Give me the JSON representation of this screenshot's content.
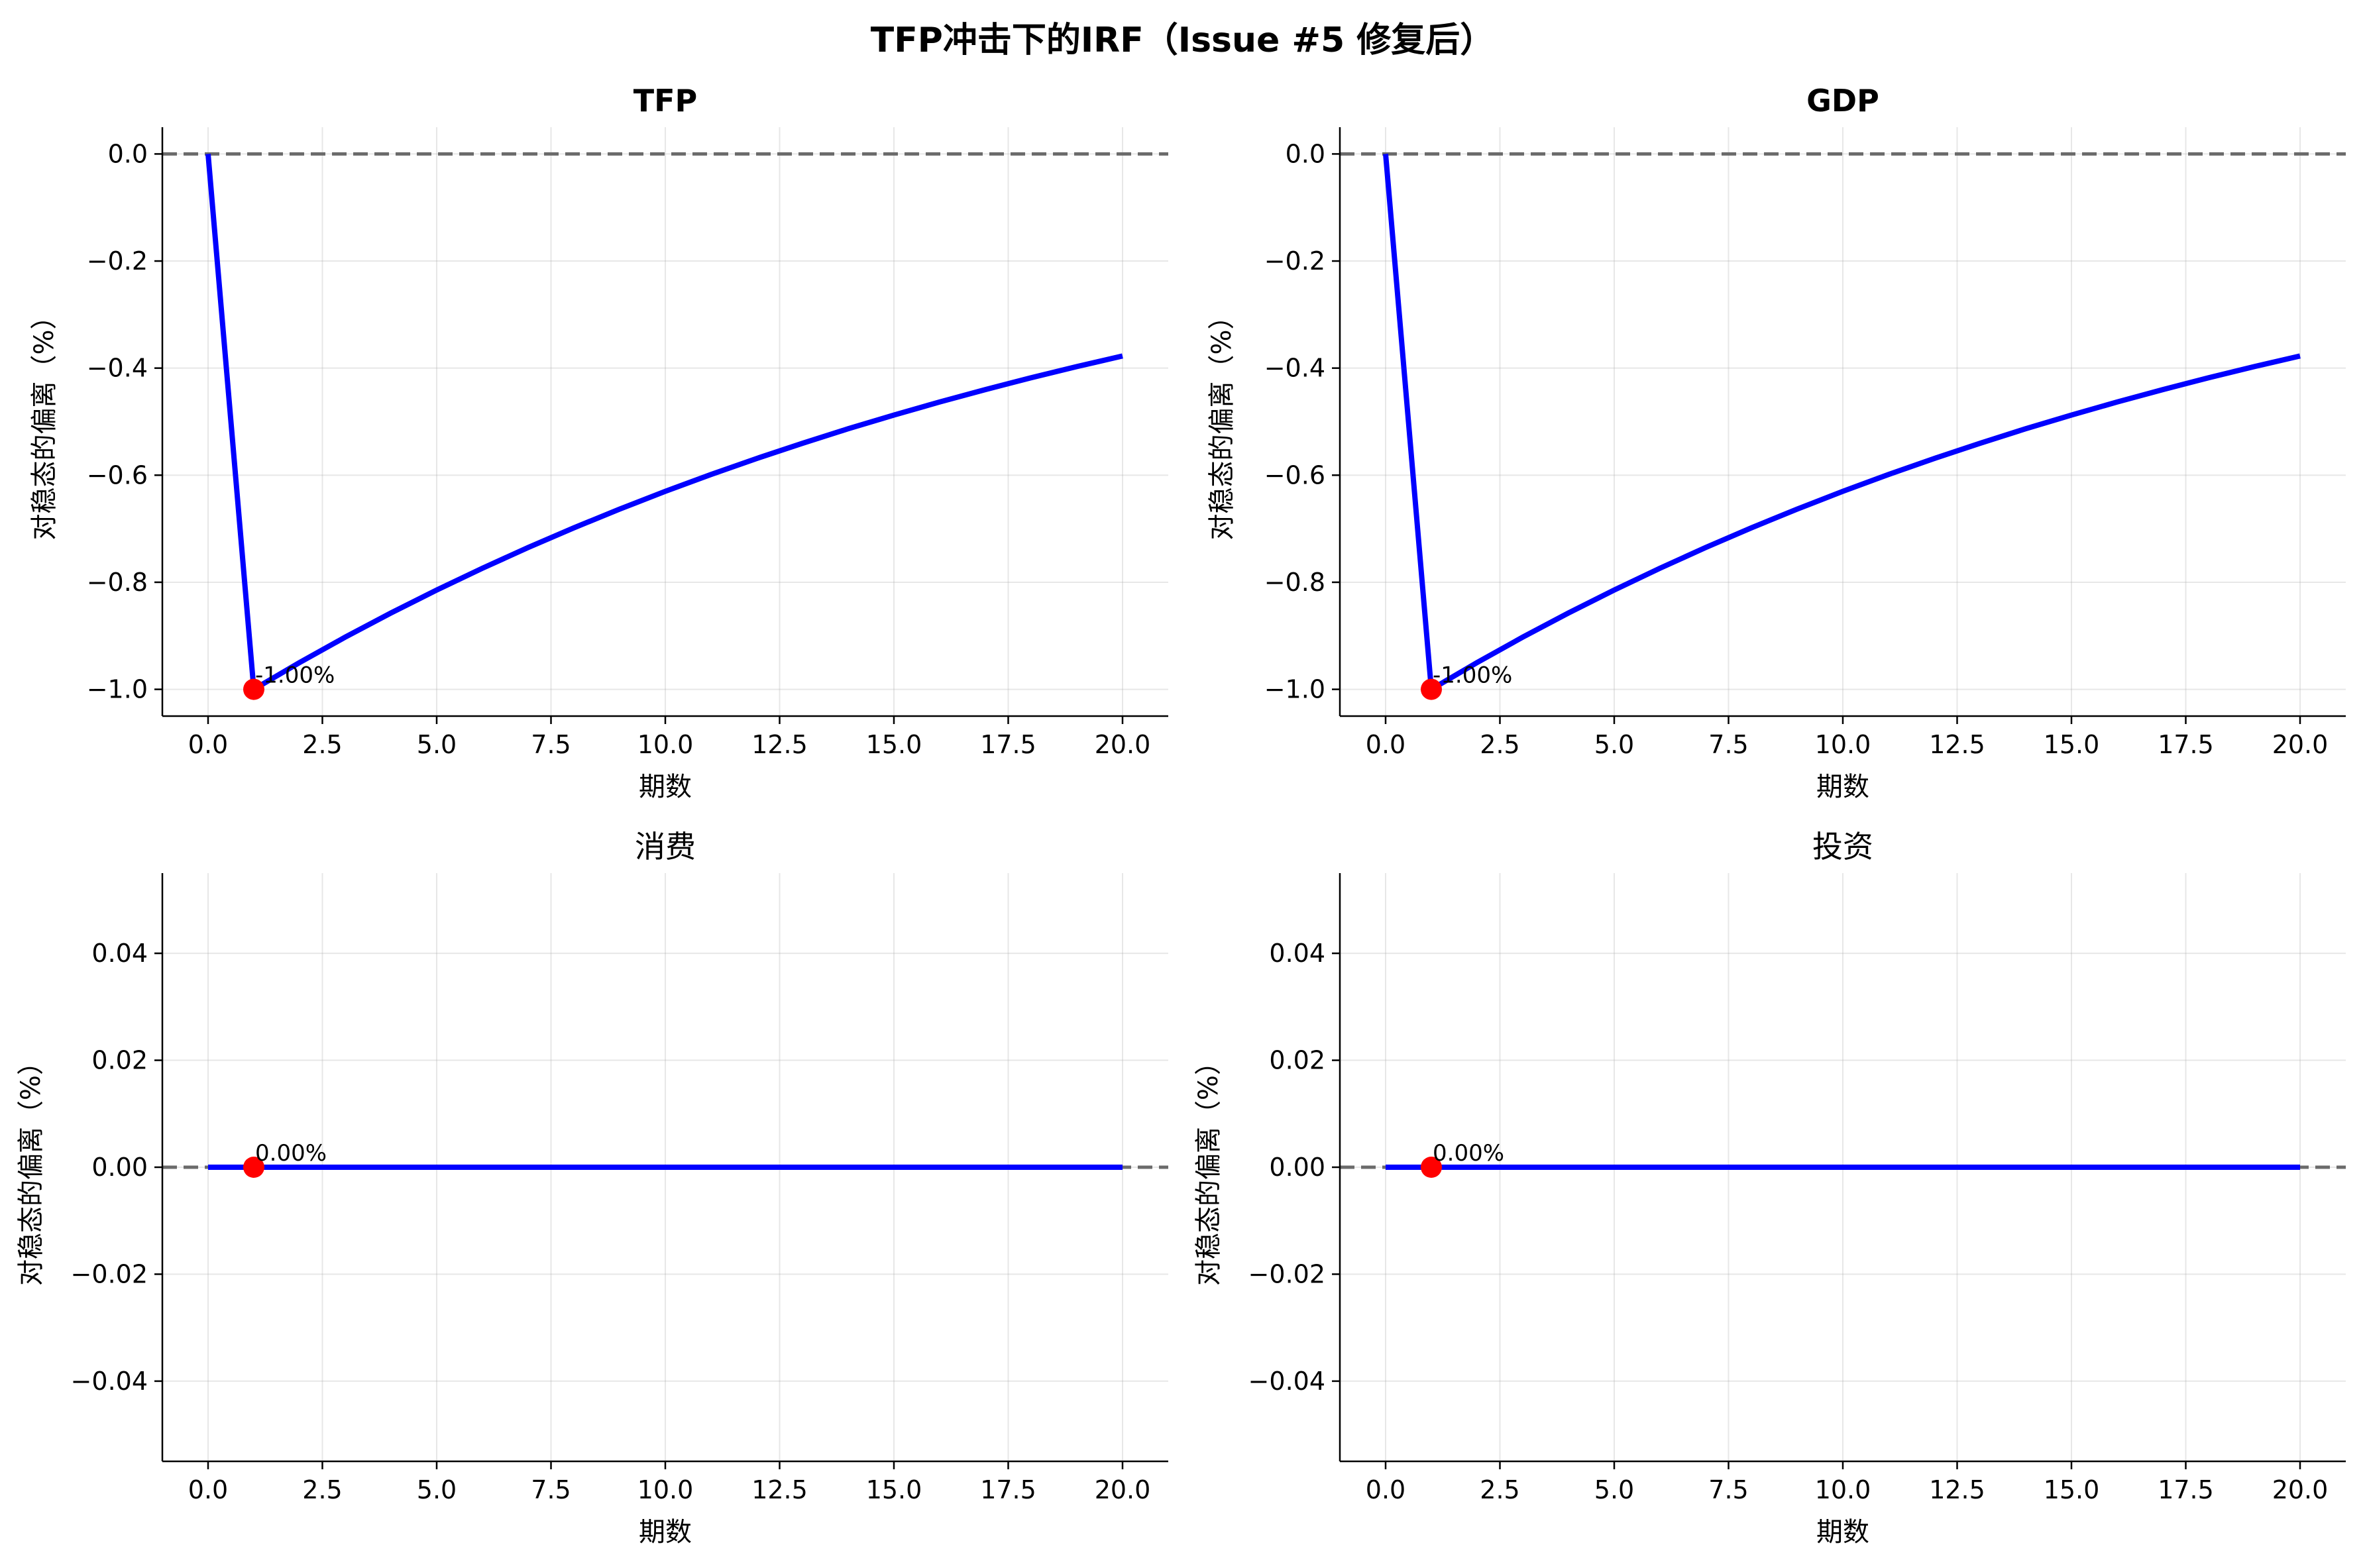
{
  "figure_title": "TFP冲击下的IRF（Issue #5 修复后）",
  "chart_data": [
    {
      "type": "line",
      "title": "TFP",
      "title_bold": true,
      "xlabel": "期数",
      "ylabel": "对稳态的偏离（%）",
      "xlim": [
        -1,
        21
      ],
      "ylim": [
        -1.05,
        0.05
      ],
      "xticks": [
        0,
        2.5,
        5,
        7.5,
        10,
        12.5,
        15,
        17.5,
        20
      ],
      "xtick_labels": [
        "0.0",
        "2.5",
        "5.0",
        "7.5",
        "10.0",
        "12.5",
        "15.0",
        "17.5",
        "20.0"
      ],
      "yticks": [
        0,
        -0.2,
        -0.4,
        -0.6,
        -0.8,
        -1.0
      ],
      "ytick_labels": [
        "0.0",
        "−0.2",
        "−0.4",
        "−0.6",
        "−0.8",
        "−1.0"
      ],
      "grid": true,
      "reference_line_y": 0,
      "x": [
        0,
        1,
        2,
        3,
        4,
        5,
        6,
        7,
        8,
        9,
        10,
        11,
        12,
        13,
        14,
        15,
        16,
        17,
        18,
        19,
        20
      ],
      "values": [
        0,
        -1.0,
        -0.95,
        -0.9025,
        -0.8574,
        -0.8145,
        -0.7738,
        -0.7351,
        -0.6983,
        -0.6634,
        -0.6302,
        -0.5987,
        -0.5688,
        -0.5404,
        -0.5133,
        -0.4877,
        -0.4633,
        -0.4401,
        -0.4181,
        -0.3972,
        -0.3774
      ],
      "marker": {
        "x": 1,
        "y": -1.0,
        "label": "-1.00%"
      },
      "line_color": "#0000ff",
      "marker_color": "#ff0000"
    },
    {
      "type": "line",
      "title": "GDP",
      "title_bold": true,
      "xlabel": "期数",
      "ylabel": "对稳态的偏离（%）",
      "xlim": [
        -1,
        21
      ],
      "ylim": [
        -1.05,
        0.05
      ],
      "xticks": [
        0,
        2.5,
        5,
        7.5,
        10,
        12.5,
        15,
        17.5,
        20
      ],
      "xtick_labels": [
        "0.0",
        "2.5",
        "5.0",
        "7.5",
        "10.0",
        "12.5",
        "15.0",
        "17.5",
        "20.0"
      ],
      "yticks": [
        0,
        -0.2,
        -0.4,
        -0.6,
        -0.8,
        -1.0
      ],
      "ytick_labels": [
        "0.0",
        "−0.2",
        "−0.4",
        "−0.6",
        "−0.8",
        "−1.0"
      ],
      "grid": true,
      "reference_line_y": 0,
      "x": [
        0,
        1,
        2,
        3,
        4,
        5,
        6,
        7,
        8,
        9,
        10,
        11,
        12,
        13,
        14,
        15,
        16,
        17,
        18,
        19,
        20
      ],
      "values": [
        0,
        -1.0,
        -0.95,
        -0.9025,
        -0.8574,
        -0.8145,
        -0.7738,
        -0.7351,
        -0.6983,
        -0.6634,
        -0.6302,
        -0.5987,
        -0.5688,
        -0.5404,
        -0.5133,
        -0.4877,
        -0.4633,
        -0.4401,
        -0.4181,
        -0.3972,
        -0.3774
      ],
      "marker": {
        "x": 1,
        "y": -1.0,
        "label": "-1.00%"
      },
      "line_color": "#0000ff",
      "marker_color": "#ff0000"
    },
    {
      "type": "line",
      "title": "消费",
      "title_bold": false,
      "xlabel": "期数",
      "ylabel": "对稳态的偏离（%）",
      "xlim": [
        -1,
        21
      ],
      "ylim": [
        -0.055,
        0.055
      ],
      "xticks": [
        0,
        2.5,
        5,
        7.5,
        10,
        12.5,
        15,
        17.5,
        20
      ],
      "xtick_labels": [
        "0.0",
        "2.5",
        "5.0",
        "7.5",
        "10.0",
        "12.5",
        "15.0",
        "17.5",
        "20.0"
      ],
      "yticks": [
        0.04,
        0.02,
        0,
        -0.02,
        -0.04
      ],
      "ytick_labels": [
        "0.04",
        "0.02",
        "0.00",
        "−0.02",
        "−0.04"
      ],
      "grid": true,
      "reference_line_y": 0,
      "x": [
        0,
        1,
        2,
        3,
        4,
        5,
        6,
        7,
        8,
        9,
        10,
        11,
        12,
        13,
        14,
        15,
        16,
        17,
        18,
        19,
        20
      ],
      "values": [
        0,
        0,
        0,
        0,
        0,
        0,
        0,
        0,
        0,
        0,
        0,
        0,
        0,
        0,
        0,
        0,
        0,
        0,
        0,
        0,
        0
      ],
      "marker": {
        "x": 1,
        "y": 0,
        "label": "0.00%"
      },
      "line_color": "#0000ff",
      "marker_color": "#ff0000"
    },
    {
      "type": "line",
      "title": "投资",
      "title_bold": false,
      "xlabel": "期数",
      "ylabel": "对稳态的偏离（%）",
      "xlim": [
        -1,
        21
      ],
      "ylim": [
        -0.055,
        0.055
      ],
      "xticks": [
        0,
        2.5,
        5,
        7.5,
        10,
        12.5,
        15,
        17.5,
        20
      ],
      "xtick_labels": [
        "0.0",
        "2.5",
        "5.0",
        "7.5",
        "10.0",
        "12.5",
        "15.0",
        "17.5",
        "20.0"
      ],
      "yticks": [
        0.04,
        0.02,
        0,
        -0.02,
        -0.04
      ],
      "ytick_labels": [
        "0.04",
        "0.02",
        "0.00",
        "−0.02",
        "−0.04"
      ],
      "grid": true,
      "reference_line_y": 0,
      "x": [
        0,
        1,
        2,
        3,
        4,
        5,
        6,
        7,
        8,
        9,
        10,
        11,
        12,
        13,
        14,
        15,
        16,
        17,
        18,
        19,
        20
      ],
      "values": [
        0,
        0,
        0,
        0,
        0,
        0,
        0,
        0,
        0,
        0,
        0,
        0,
        0,
        0,
        0,
        0,
        0,
        0,
        0,
        0,
        0
      ],
      "marker": {
        "x": 1,
        "y": 0,
        "label": "0.00%"
      },
      "line_color": "#0000ff",
      "marker_color": "#ff0000"
    }
  ]
}
